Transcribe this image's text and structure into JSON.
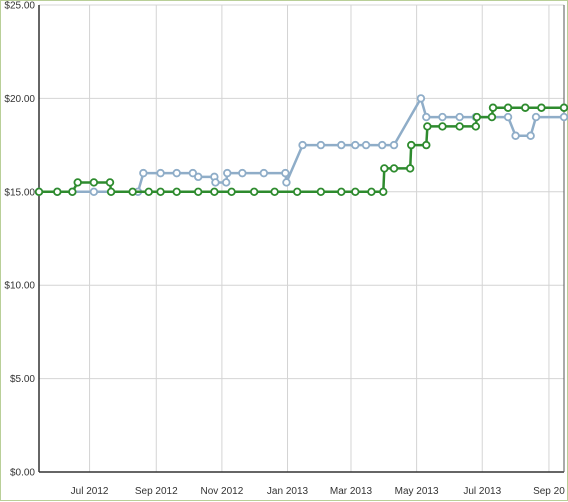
{
  "chart_data": {
    "type": "line",
    "title": "",
    "xlabel": "",
    "ylabel": "",
    "ylim": [
      0,
      25
    ],
    "xlim": [
      "2012-05-15",
      "2013-09-15"
    ],
    "y_ticks": [
      "$0.00",
      "$5.00",
      "$10.00",
      "$15.00",
      "$20.00",
      "$25.00"
    ],
    "y_tick_values": [
      0,
      5,
      10,
      15,
      20,
      25
    ],
    "x_ticks": [
      "Jul 2012",
      "Sep 2012",
      "Nov 2012",
      "Jan 2013",
      "Mar 2013",
      "May 2013",
      "Jul 2013",
      "Sep 20"
    ],
    "x_tick_dates": [
      "2012-07-01",
      "2012-09-01",
      "2012-11-01",
      "2013-01-01",
      "2013-03-01",
      "2013-05-01",
      "2013-07-01",
      "2013-09-01"
    ],
    "grid": true,
    "series": [
      {
        "color": "#8fadc8",
        "points": [
          [
            "2012-05-15",
            15.0
          ],
          [
            "2012-06-01",
            15.0
          ],
          [
            "2012-06-15",
            15.0
          ],
          [
            "2012-07-05",
            15.0
          ],
          [
            "2012-08-15",
            15.0
          ],
          [
            "2012-08-20",
            16.0
          ],
          [
            "2012-09-05",
            16.0
          ],
          [
            "2012-09-20",
            16.0
          ],
          [
            "2012-10-05",
            16.0
          ],
          [
            "2012-10-10",
            15.8
          ],
          [
            "2012-10-25",
            15.8
          ],
          [
            "2012-10-26",
            15.5
          ],
          [
            "2012-11-05",
            15.5
          ],
          [
            "2012-11-06",
            16.0
          ],
          [
            "2012-11-20",
            16.0
          ],
          [
            "2012-12-10",
            16.0
          ],
          [
            "2012-12-30",
            16.0
          ],
          [
            "2012-12-31",
            15.5
          ],
          [
            "2013-01-15",
            17.5
          ],
          [
            "2013-02-01",
            17.5
          ],
          [
            "2013-02-20",
            17.5
          ],
          [
            "2013-03-05",
            17.5
          ],
          [
            "2013-03-15",
            17.5
          ],
          [
            "2013-03-30",
            17.5
          ],
          [
            "2013-04-10",
            17.5
          ],
          [
            "2013-05-05",
            20.0
          ],
          [
            "2013-05-10",
            19.0
          ],
          [
            "2013-05-25",
            19.0
          ],
          [
            "2013-06-10",
            19.0
          ],
          [
            "2013-06-25",
            19.0
          ],
          [
            "2013-07-10",
            19.0
          ],
          [
            "2013-07-25",
            19.0
          ],
          [
            "2013-08-01",
            18.0
          ],
          [
            "2013-08-15",
            18.0
          ],
          [
            "2013-08-20",
            19.0
          ],
          [
            "2013-09-15",
            19.0
          ]
        ]
      },
      {
        "color": "#2e8b2e",
        "points": [
          [
            "2012-05-15",
            15.0
          ],
          [
            "2012-06-01",
            15.0
          ],
          [
            "2012-06-15",
            15.0
          ],
          [
            "2012-06-20",
            15.5
          ],
          [
            "2012-07-05",
            15.5
          ],
          [
            "2012-07-20",
            15.5
          ],
          [
            "2012-07-21",
            15.0
          ],
          [
            "2012-08-10",
            15.0
          ],
          [
            "2012-08-25",
            15.0
          ],
          [
            "2012-09-05",
            15.0
          ],
          [
            "2012-09-20",
            15.0
          ],
          [
            "2012-10-10",
            15.0
          ],
          [
            "2012-10-25",
            15.0
          ],
          [
            "2012-11-10",
            15.0
          ],
          [
            "2012-12-01",
            15.0
          ],
          [
            "2012-12-20",
            15.0
          ],
          [
            "2013-01-10",
            15.0
          ],
          [
            "2013-02-01",
            15.0
          ],
          [
            "2013-02-20",
            15.0
          ],
          [
            "2013-03-05",
            15.0
          ],
          [
            "2013-03-20",
            15.0
          ],
          [
            "2013-03-31",
            15.0
          ],
          [
            "2013-04-01",
            16.25
          ],
          [
            "2013-04-10",
            16.25
          ],
          [
            "2013-04-25",
            16.25
          ],
          [
            "2013-04-26",
            17.5
          ],
          [
            "2013-05-10",
            17.5
          ],
          [
            "2013-05-11",
            18.5
          ],
          [
            "2013-05-25",
            18.5
          ],
          [
            "2013-06-10",
            18.5
          ],
          [
            "2013-06-25",
            18.5
          ],
          [
            "2013-06-26",
            19.0
          ],
          [
            "2013-07-10",
            19.0
          ],
          [
            "2013-07-11",
            19.5
          ],
          [
            "2013-07-25",
            19.5
          ],
          [
            "2013-08-10",
            19.5
          ],
          [
            "2013-08-25",
            19.5
          ],
          [
            "2013-09-15",
            19.5
          ]
        ]
      }
    ]
  }
}
